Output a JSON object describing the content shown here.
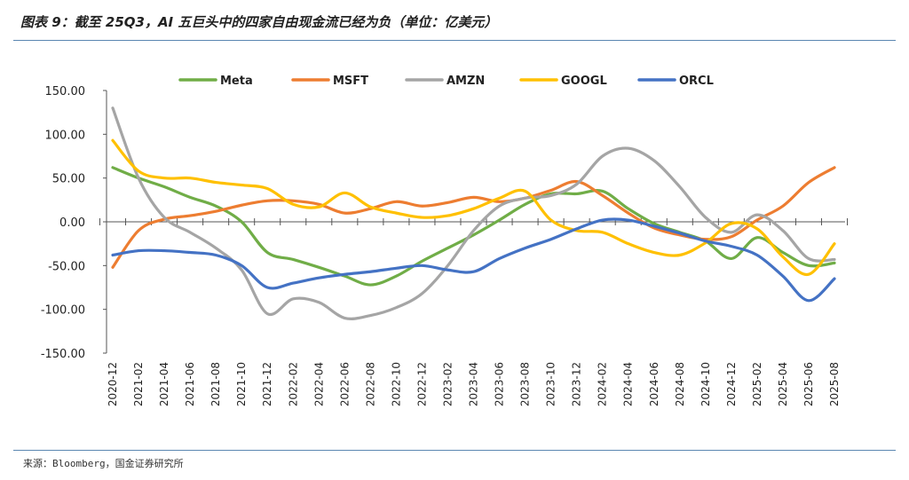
{
  "page": {
    "title": "图表 9：截至 25Q3，AI 五巨头中的四家自由现金流已经为负（单位：亿美元）",
    "source": "来源：Bloomberg，国金证券研究所"
  },
  "chart_data": {
    "type": "line",
    "title": "图表 9：截至 25Q3，AI 五巨头中的四家自由现金流已经为负（单位：亿美元）",
    "xlabel": "",
    "ylabel": "",
    "ylim": [
      -150,
      150
    ],
    "yticks": [
      150,
      100,
      50,
      0,
      -50,
      -100,
      -150
    ],
    "ytick_labels": [
      "150.00",
      "100.00",
      "50.00",
      "0.00",
      "-50.00",
      "-100.00",
      "-150.00"
    ],
    "x": [
      "2020-12",
      "2021-02",
      "2021-04",
      "2021-06",
      "2021-08",
      "2021-10",
      "2021-12",
      "2022-02",
      "2022-04",
      "2022-06",
      "2022-08",
      "2022-10",
      "2022-12",
      "2023-02",
      "2023-04",
      "2023-06",
      "2023-08",
      "2023-10",
      "2023-12",
      "2024-02",
      "2024-04",
      "2024-06",
      "2024-08",
      "2024-10",
      "2024-12",
      "2025-02",
      "2025-04",
      "2025-06",
      "2025-08"
    ],
    "legend_position": "top",
    "series": [
      {
        "name": "Meta",
        "color": "#70ad47",
        "values": [
          62,
          50,
          40,
          28,
          18,
          0,
          -35,
          -43,
          -52,
          -62,
          -72,
          -62,
          -45,
          -30,
          -15,
          2,
          20,
          32,
          32,
          35,
          15,
          -2,
          -12,
          -22,
          -42,
          -18,
          -35,
          -50,
          -47
        ]
      },
      {
        "name": "MSFT",
        "color": "#ed7d31",
        "values": [
          -52,
          -10,
          3,
          7,
          12,
          19,
          24,
          24,
          20,
          10,
          15,
          23,
          18,
          22,
          28,
          23,
          27,
          36,
          46,
          30,
          10,
          -7,
          -15,
          -20,
          -17,
          2,
          18,
          45,
          62
        ]
      },
      {
        "name": "AMZN",
        "color": "#a5a5a5",
        "values": [
          130,
          50,
          5,
          -12,
          -30,
          -55,
          -105,
          -88,
          -92,
          -110,
          -107,
          -98,
          -82,
          -50,
          -10,
          18,
          27,
          30,
          43,
          75,
          84,
          70,
          40,
          5,
          -12,
          8,
          -10,
          -42,
          -43
        ]
      },
      {
        "name": "GOOGL",
        "color": "#ffc000",
        "values": [
          93,
          58,
          50,
          50,
          45,
          42,
          38,
          20,
          17,
          33,
          17,
          10,
          5,
          7,
          15,
          27,
          35,
          2,
          -10,
          -12,
          -25,
          -35,
          -38,
          -24,
          -2,
          -8,
          -40,
          -60,
          -25
        ]
      },
      {
        "name": "ORCL",
        "color": "#4472c4",
        "values": [
          -38,
          -33,
          -33,
          -35,
          -38,
          -50,
          -75,
          -70,
          -64,
          -60,
          -57,
          -53,
          -50,
          -55,
          -57,
          -42,
          -30,
          -20,
          -8,
          2,
          2,
          -5,
          -13,
          -22,
          -28,
          -38,
          -62,
          -90,
          -65
        ]
      }
    ]
  }
}
